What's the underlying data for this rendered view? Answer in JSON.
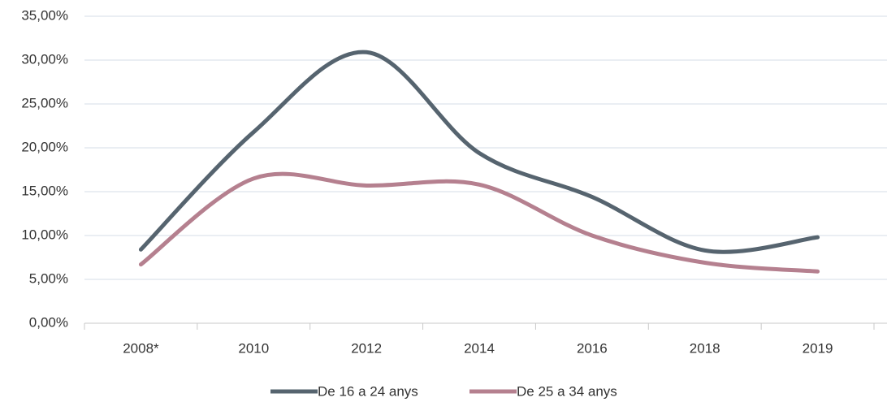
{
  "chart_data": {
    "type": "line",
    "categories": [
      "2008*",
      "2010",
      "2012",
      "2014",
      "2016",
      "2018",
      "2019"
    ],
    "series": [
      {
        "name": "De 16 a 24 anys",
        "color": "#56646f",
        "values": [
          8.4,
          21.8,
          30.9,
          19.4,
          14.4,
          8.3,
          9.8
        ]
      },
      {
        "name": "De 25 a 34 anys",
        "color": "#b5808f",
        "values": [
          6.7,
          16.5,
          15.7,
          15.8,
          10.0,
          6.9,
          5.9
        ]
      }
    ],
    "ylim": [
      0,
      35
    ],
    "yticks": [
      {
        "value": 0,
        "label": "0,00%"
      },
      {
        "value": 5,
        "label": "5,00%"
      },
      {
        "value": 10,
        "label": "10,00%"
      },
      {
        "value": 15,
        "label": "15,00%"
      },
      {
        "value": 20,
        "label": "20,00%"
      },
      {
        "value": 25,
        "label": "25,00%"
      },
      {
        "value": 30,
        "label": "30,00%"
      },
      {
        "value": 35,
        "label": "35,00%"
      }
    ],
    "grid": true,
    "legend": "bottom",
    "smooth": true
  }
}
